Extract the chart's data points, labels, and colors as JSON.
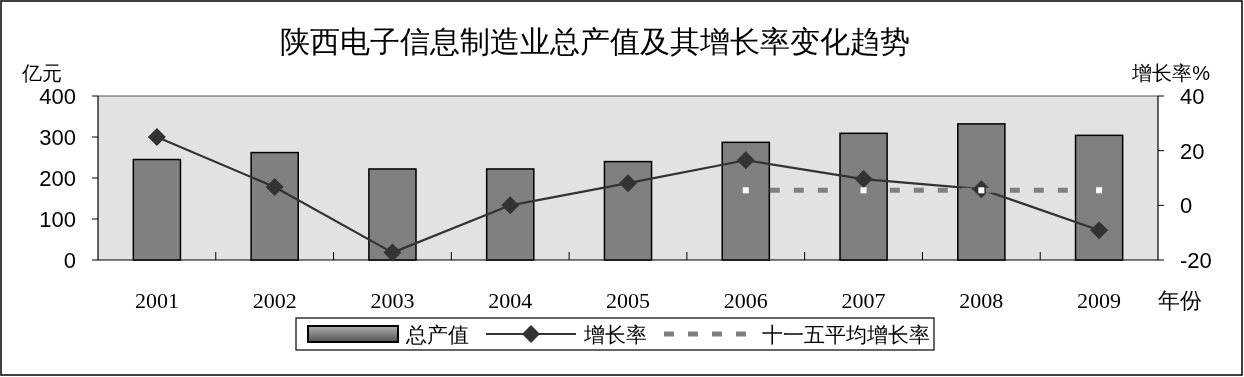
{
  "chart_data": {
    "type": "bar",
    "title": "陕西电子信息制造业总产值及其增长率变化趋势",
    "ylabel": "亿元",
    "y2label": "增长率%",
    "xlabel": "年份",
    "categories": [
      "2001",
      "2002",
      "2003",
      "2004",
      "2005",
      "2006",
      "2007",
      "2008",
      "2009"
    ],
    "series": [
      {
        "name": "总产值",
        "color": "#808080",
        "values": [
          245,
          262,
          222,
          222,
          240,
          287,
          309,
          332,
          304
        ]
      },
      {
        "name": "增长率",
        "type": "line",
        "axis": "y2",
        "color": "#333333",
        "marker": "diamond",
        "line_style": "solid",
        "values": [
          25,
          6.7,
          -17.3,
          0,
          8.1,
          16.5,
          9.6,
          5.9,
          -9.1
        ]
      },
      {
        "name": "十一五平均增长率",
        "type": "line",
        "axis": "y2",
        "color": "#808080",
        "marker": "square",
        "line_style": "dashed",
        "values": [
          null,
          null,
          null,
          null,
          null,
          5.5,
          5.5,
          5.5,
          5.5
        ]
      }
    ],
    "ylim": [
      0,
      400
    ],
    "yticks": [
      0,
      100,
      200,
      300,
      400
    ],
    "y2lim": [
      -20,
      40
    ],
    "y2ticks": [
      -20,
      0,
      20,
      40
    ],
    "grid": false,
    "legend": "bottom"
  }
}
